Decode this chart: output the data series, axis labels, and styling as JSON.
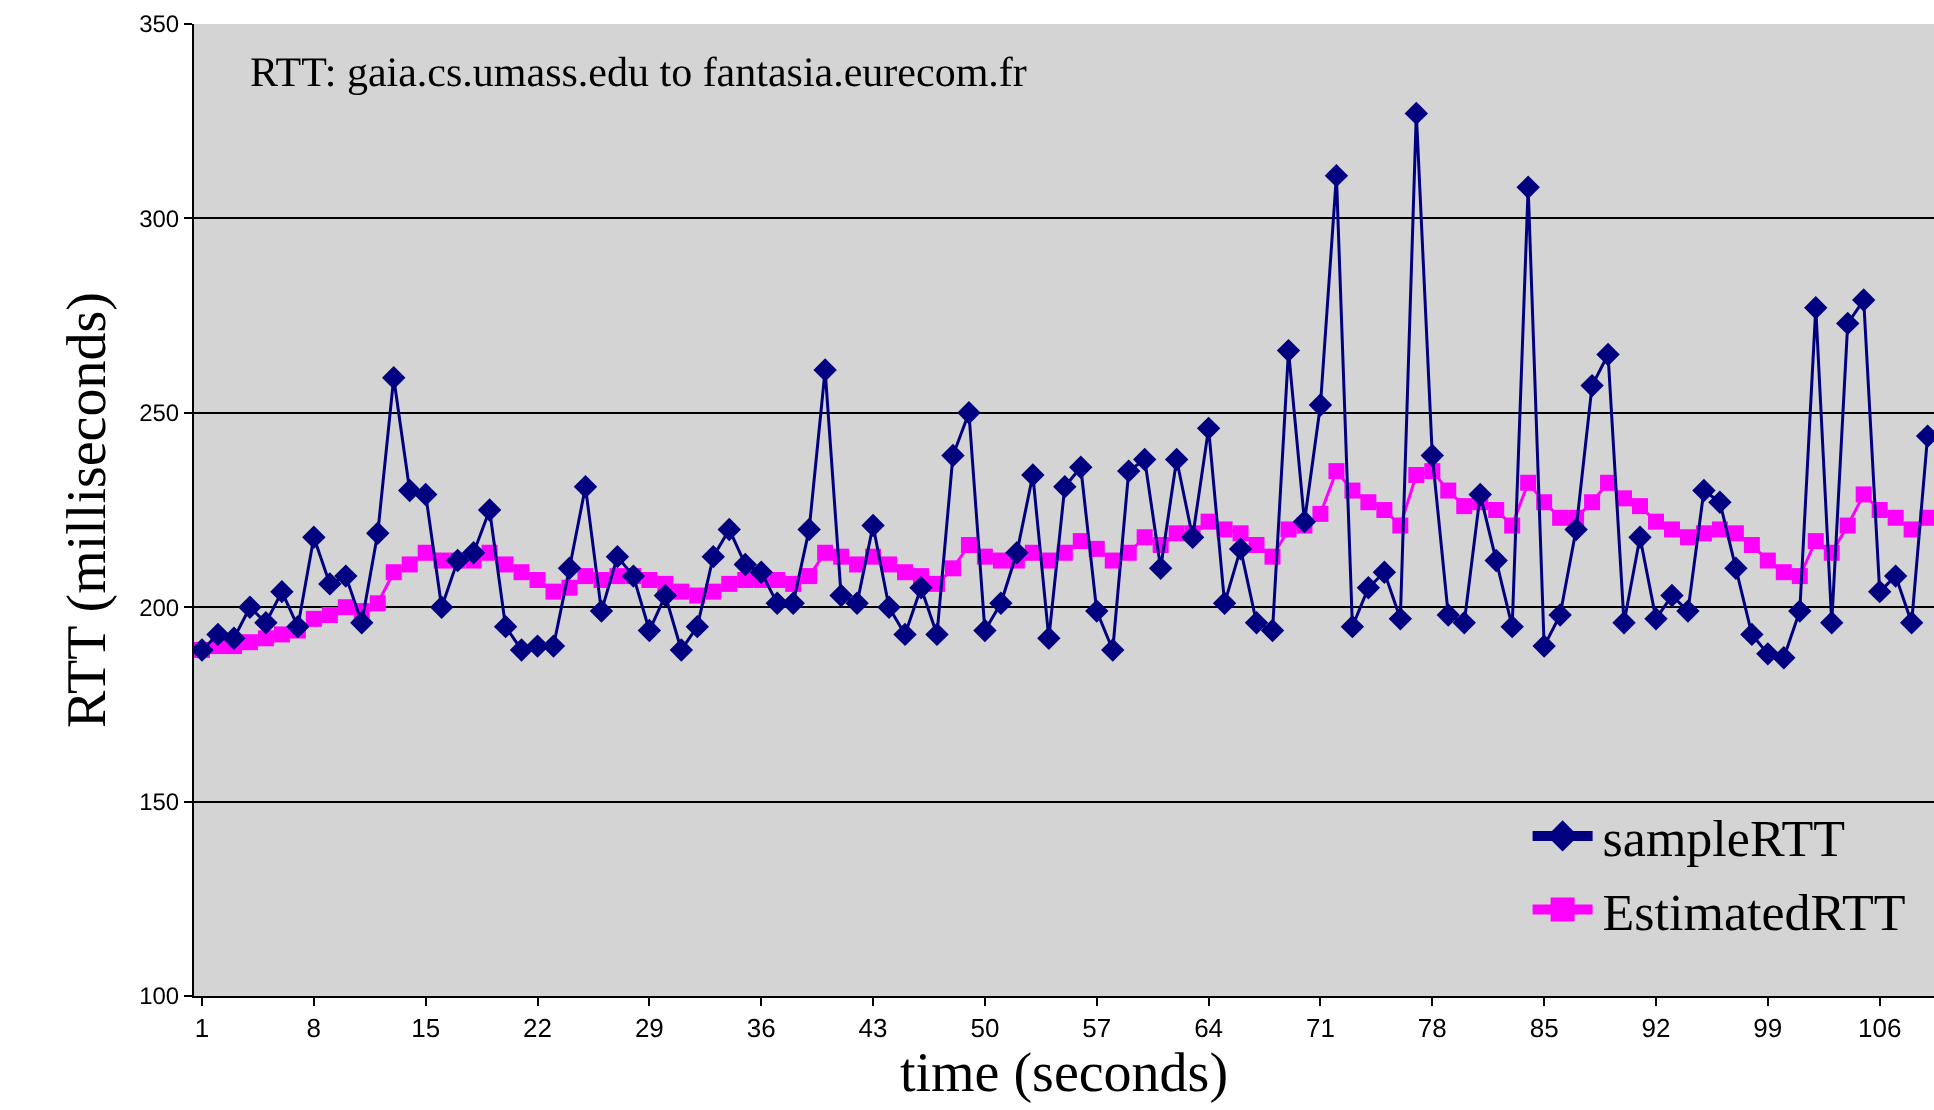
{
  "chart_data": {
    "type": "line",
    "xlabel": "time (seconds)",
    "ylabel": "RTT (milliseconds)",
    "annotations": [
      "RTT: gaia.cs.umass.edu to fantasia.eurecom.fr"
    ],
    "x": [
      1,
      2,
      3,
      4,
      5,
      6,
      7,
      8,
      9,
      10,
      11,
      12,
      13,
      14,
      15,
      16,
      17,
      18,
      19,
      20,
      21,
      22,
      23,
      24,
      25,
      26,
      27,
      28,
      29,
      30,
      31,
      32,
      33,
      34,
      35,
      36,
      37,
      38,
      39,
      40,
      41,
      42,
      43,
      44,
      45,
      46,
      47,
      48,
      49,
      50,
      51,
      52,
      53,
      54,
      55,
      56,
      57,
      58,
      59,
      60,
      61,
      62,
      63,
      64,
      65,
      66,
      67,
      68,
      69,
      70,
      71,
      72,
      73,
      74,
      75,
      76,
      77,
      78,
      79,
      80,
      81,
      82,
      83,
      84,
      85,
      86,
      87,
      88,
      89,
      90,
      91,
      92,
      93,
      94,
      95,
      96,
      97,
      98,
      99,
      100,
      101,
      102,
      103,
      104,
      105,
      106,
      107,
      108,
      109
    ],
    "series": [
      {
        "name": "sampleRTT",
        "color": "#000080",
        "marker": "diamond",
        "values": [
          189,
          193,
          192,
          200,
          196,
          204,
          195,
          218,
          206,
          208,
          196,
          219,
          259,
          230,
          229,
          200,
          212,
          214,
          225,
          195,
          189,
          190,
          190,
          210,
          231,
          199,
          213,
          208,
          194,
          203,
          189,
          195,
          213,
          220,
          211,
          209,
          201,
          201,
          220,
          261,
          203,
          201,
          221,
          200,
          193,
          205,
          193,
          239,
          250,
          194,
          201,
          214,
          234,
          192,
          231,
          236,
          199,
          189,
          235,
          238,
          210,
          238,
          218,
          246,
          201,
          215,
          196,
          194,
          266,
          222,
          252,
          311,
          195,
          205,
          209,
          197,
          327,
          239,
          198,
          196,
          229,
          212,
          195,
          308,
          190,
          198,
          220,
          257,
          265,
          196,
          218,
          197,
          203,
          199,
          230,
          227,
          210,
          193,
          188,
          187,
          199,
          277,
          196,
          273,
          279,
          204,
          208,
          196,
          244
        ]
      },
      {
        "name": "EstimatedRTT",
        "color": "#ff00ff",
        "marker": "square",
        "values": [
          189,
          190,
          190,
          191,
          192,
          193,
          194,
          197,
          198,
          200,
          199,
          201,
          209,
          211,
          214,
          212,
          212,
          212,
          214,
          211,
          209,
          207,
          204,
          205,
          208,
          207,
          208,
          208,
          207,
          206,
          204,
          203,
          204,
          206,
          207,
          207,
          207,
          206,
          208,
          214,
          213,
          211,
          213,
          211,
          209,
          208,
          206,
          210,
          216,
          213,
          212,
          212,
          214,
          212,
          214,
          217,
          215,
          212,
          214,
          218,
          216,
          219,
          219,
          222,
          220,
          219,
          216,
          213,
          220,
          221,
          224,
          235,
          230,
          227,
          225,
          221,
          234,
          235,
          230,
          226,
          227,
          225,
          221,
          232,
          227,
          223,
          223,
          227,
          232,
          228,
          226,
          222,
          220,
          218,
          219,
          220,
          219,
          216,
          212,
          209,
          208,
          217,
          214,
          221,
          229,
          225,
          223,
          220,
          223
        ]
      }
    ],
    "xlim": [
      0.5,
      109.4
    ],
    "xticks": [
      1,
      8,
      15,
      22,
      29,
      36,
      43,
      50,
      57,
      64,
      71,
      78,
      85,
      92,
      99,
      106
    ],
    "ylim": [
      100,
      350
    ],
    "yticks": [
      100,
      150,
      200,
      250,
      300,
      350
    ],
    "grid": "y",
    "legend": "bottom right"
  }
}
